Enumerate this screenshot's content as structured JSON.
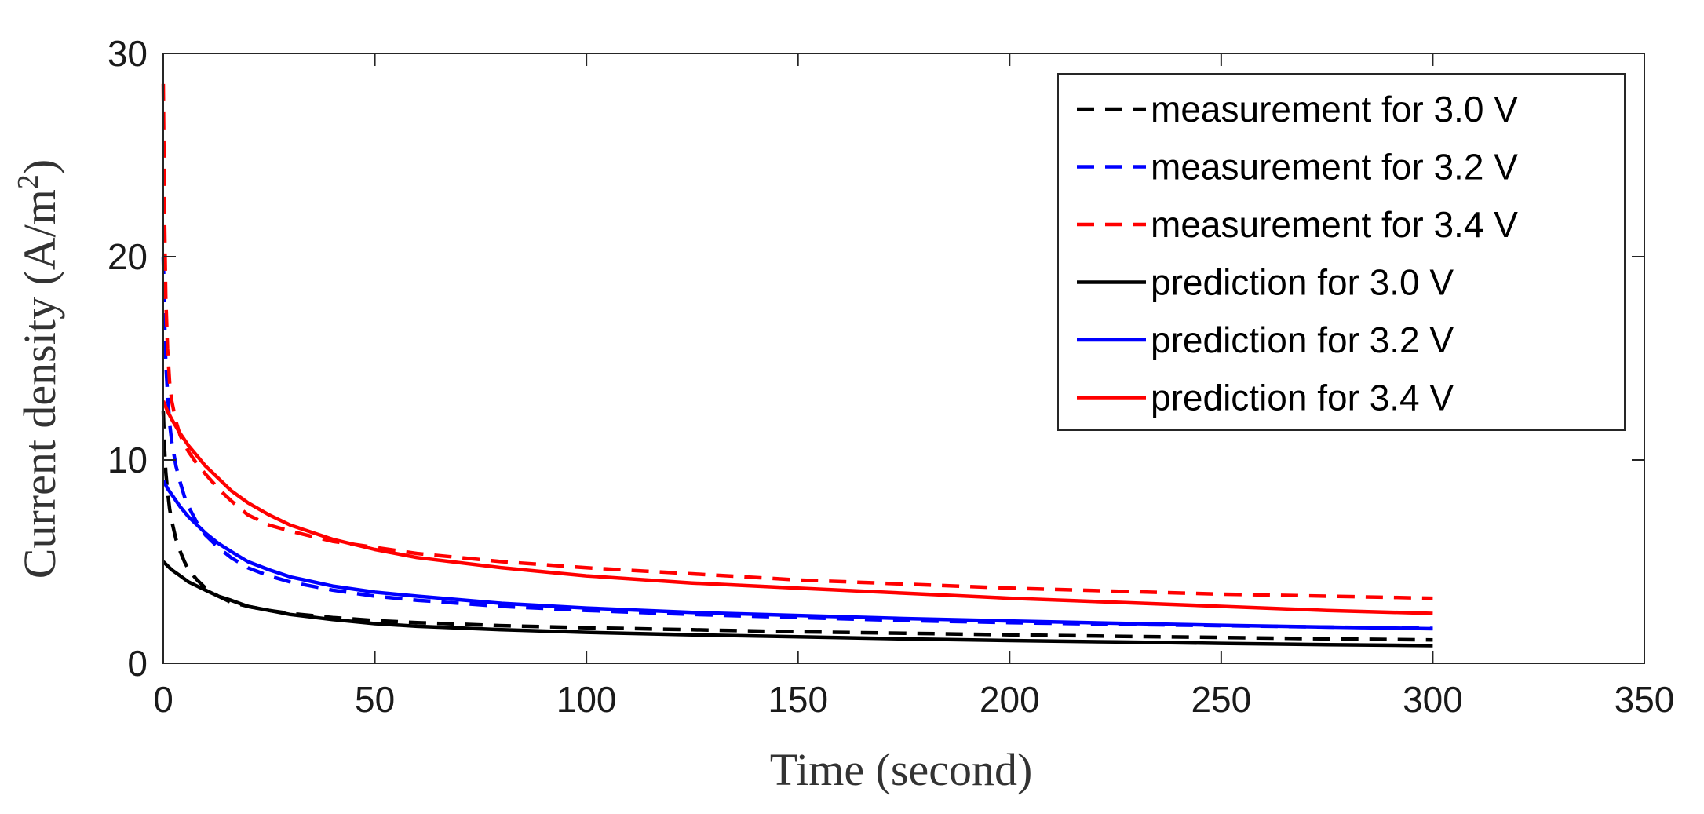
{
  "chart_data": {
    "type": "line",
    "title": "",
    "xlabel": "Time (second)",
    "ylabel": "Current density (A/m",
    "ylabel_superscript": "2",
    "ylabel_close": ")",
    "xlim": [
      0,
      350
    ],
    "ylim": [
      0,
      30
    ],
    "xticks": [
      "0",
      "50",
      "100",
      "150",
      "200",
      "250",
      "300",
      "350"
    ],
    "yticks": [
      "0",
      "10",
      "20",
      "30"
    ],
    "grid": false,
    "legend_position": "top-right",
    "series": [
      {
        "name": "measurement for 3.0 V",
        "color": "#000000",
        "style": "dashed",
        "x": [
          0,
          0.3,
          0.6,
          1,
          1.5,
          2,
          3,
          4,
          5,
          6,
          8,
          10,
          13,
          16,
          20,
          25,
          30,
          40,
          50,
          60,
          80,
          100,
          125,
          150,
          175,
          200,
          225,
          250,
          275,
          300
        ],
        "y": [
          12.4,
          10.6,
          9.4,
          8.5,
          7.6,
          7.0,
          6.1,
          5.5,
          5.0,
          4.6,
          4.1,
          3.7,
          3.3,
          3.0,
          2.8,
          2.6,
          2.45,
          2.25,
          2.1,
          2.0,
          1.85,
          1.75,
          1.65,
          1.55,
          1.48,
          1.4,
          1.33,
          1.27,
          1.2,
          1.15
        ]
      },
      {
        "name": "measurement for 3.2 V",
        "color": "#0000ff",
        "style": "dashed",
        "x": [
          0,
          0.3,
          0.6,
          1,
          1.5,
          2,
          3,
          4,
          5,
          6,
          8,
          10,
          13,
          16,
          20,
          25,
          30,
          40,
          50,
          60,
          80,
          100,
          125,
          150,
          175,
          200,
          225,
          250,
          275,
          300
        ],
        "y": [
          20.0,
          17.0,
          14.8,
          13.3,
          11.8,
          10.9,
          9.7,
          8.9,
          8.2,
          7.7,
          6.9,
          6.3,
          5.7,
          5.2,
          4.7,
          4.3,
          4.0,
          3.6,
          3.3,
          3.1,
          2.8,
          2.6,
          2.4,
          2.25,
          2.1,
          2.0,
          1.92,
          1.85,
          1.78,
          1.72
        ]
      },
      {
        "name": "measurement for 3.4 V",
        "color": "#ff0000",
        "style": "dashed",
        "x": [
          0,
          0.3,
          0.6,
          1,
          1.5,
          2,
          3,
          4,
          5,
          6,
          8,
          10,
          13,
          16,
          20,
          25,
          30,
          40,
          50,
          60,
          80,
          100,
          125,
          150,
          175,
          200,
          225,
          250,
          275,
          300
        ],
        "y": [
          28.5,
          22.0,
          18.0,
          15.5,
          13.8,
          12.9,
          11.9,
          11.2,
          10.8,
          10.4,
          9.8,
          9.3,
          8.6,
          8.0,
          7.3,
          6.8,
          6.5,
          6.0,
          5.7,
          5.4,
          5.0,
          4.7,
          4.4,
          4.1,
          3.9,
          3.7,
          3.55,
          3.4,
          3.3,
          3.2
        ]
      },
      {
        "name": "prediction for 3.0 V",
        "color": "#000000",
        "style": "solid",
        "x": [
          0,
          1,
          2,
          4,
          6,
          8,
          10,
          13,
          16,
          20,
          25,
          30,
          40,
          50,
          60,
          80,
          100,
          125,
          150,
          175,
          200,
          225,
          250,
          275,
          300
        ],
        "y": [
          5.0,
          4.8,
          4.6,
          4.3,
          4.0,
          3.8,
          3.6,
          3.3,
          3.1,
          2.8,
          2.6,
          2.4,
          2.15,
          1.95,
          1.82,
          1.65,
          1.52,
          1.4,
          1.3,
          1.2,
          1.12,
          1.05,
          0.98,
          0.92,
          0.87
        ]
      },
      {
        "name": "prediction for 3.2 V",
        "color": "#0000ff",
        "style": "solid",
        "x": [
          0,
          1,
          2,
          4,
          6,
          8,
          10,
          13,
          16,
          20,
          25,
          30,
          40,
          50,
          60,
          80,
          100,
          125,
          150,
          175,
          200,
          225,
          250,
          275,
          300
        ],
        "y": [
          9.0,
          8.6,
          8.3,
          7.7,
          7.2,
          6.8,
          6.4,
          5.9,
          5.5,
          5.0,
          4.6,
          4.25,
          3.8,
          3.5,
          3.3,
          2.95,
          2.72,
          2.5,
          2.35,
          2.2,
          2.08,
          1.97,
          1.87,
          1.78,
          1.7
        ]
      },
      {
        "name": "prediction for 3.4 V",
        "color": "#ff0000",
        "style": "solid",
        "x": [
          0,
          1,
          2,
          4,
          6,
          8,
          10,
          13,
          16,
          20,
          25,
          30,
          40,
          50,
          60,
          80,
          100,
          125,
          150,
          175,
          200,
          225,
          250,
          275,
          300
        ],
        "y": [
          12.9,
          12.4,
          12.0,
          11.3,
          10.7,
          10.2,
          9.7,
          9.1,
          8.5,
          7.9,
          7.3,
          6.8,
          6.1,
          5.6,
          5.2,
          4.7,
          4.3,
          3.95,
          3.7,
          3.45,
          3.2,
          3.0,
          2.8,
          2.6,
          2.45
        ]
      }
    ]
  }
}
